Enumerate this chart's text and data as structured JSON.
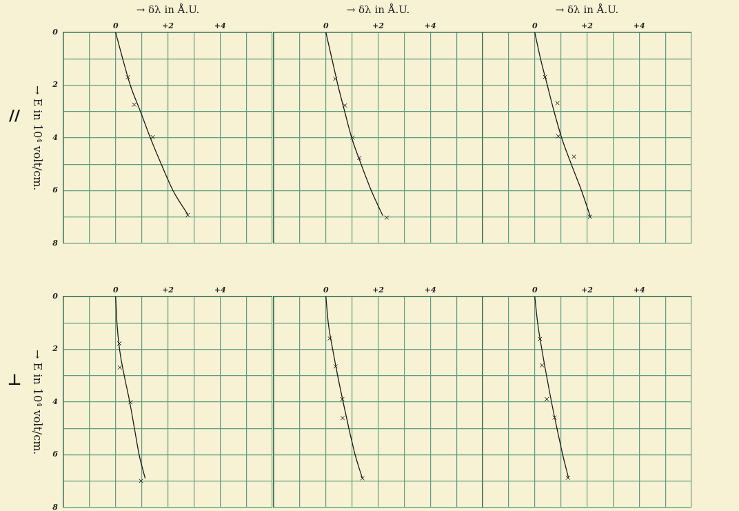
{
  "chart_data": [
    {
      "type": "scatter",
      "xlabel": "→ δλ in Å.U.",
      "ylabel": "→ E in 10⁴ volt/cm.",
      "annotations": [
        "//"
      ],
      "xlim": [
        -2,
        6
      ],
      "ylim": [
        8,
        0
      ],
      "xticks": [
        {
          "value": -2,
          "label": null
        },
        {
          "value": -1,
          "label": null
        },
        {
          "value": 0,
          "label": "0"
        },
        {
          "value": 1,
          "label": null
        },
        {
          "value": 2,
          "label": "+2"
        },
        {
          "value": 3,
          "label": null
        },
        {
          "value": 4,
          "label": "+4"
        },
        {
          "value": 5,
          "label": null
        },
        {
          "value": 6,
          "label": null
        }
      ],
      "yticks": [
        0,
        {
          "value": 1,
          "label": null
        },
        2,
        {
          "value": 3,
          "label": null
        },
        4,
        {
          "value": 5,
          "label": null
        },
        6,
        {
          "value": 7,
          "label": null
        },
        8
      ],
      "grid": true,
      "series": [
        {
          "type": "line",
          "color": "#1a1a1a",
          "marker": "none",
          "x": [
            0,
            0.27,
            0.56,
            0.95,
            1.33,
            1.75,
            2.2,
            2.76
          ],
          "values": [
            0,
            1,
            2,
            3,
            4,
            5,
            6,
            6.9
          ]
        },
        {
          "type": "scatter",
          "color": "#1a1a1a",
          "marker": "cross",
          "x": [
            0.47,
            0.71,
            1.42,
            2.76
          ],
          "values": [
            1.7,
            2.74,
            3.97,
            6.92
          ]
        }
      ]
    },
    {
      "type": "scatter",
      "xlabel": "→ δλ in Å.U.",
      "xlim": [
        -2,
        6
      ],
      "ylim": [
        8,
        0
      ],
      "xticks": [
        {
          "value": -2,
          "label": null
        },
        {
          "value": -1,
          "label": null
        },
        {
          "value": 0,
          "label": "0"
        },
        {
          "value": 1,
          "label": null
        },
        {
          "value": 2,
          "label": "+2"
        },
        {
          "value": 3,
          "label": null
        },
        {
          "value": 4,
          "label": "+4"
        },
        {
          "value": 5,
          "label": null
        },
        {
          "value": 6,
          "label": null
        }
      ],
      "yticks": [
        0,
        {
          "value": 1,
          "label": null
        },
        2,
        {
          "value": 3,
          "label": null
        },
        4,
        {
          "value": 5,
          "label": null
        },
        6,
        {
          "value": 7,
          "label": null
        },
        8
      ],
      "grid": true,
      "tick_labels": "x",
      "series": [
        {
          "type": "line",
          "color": "#1a1a1a",
          "marker": "none",
          "x": [
            0,
            0.23,
            0.46,
            0.72,
            0.99,
            1.35,
            1.74,
            2.18
          ],
          "values": [
            0,
            1,
            2,
            3,
            4,
            5,
            6,
            6.95
          ]
        },
        {
          "type": "scatter",
          "color": "#1a1a1a",
          "marker": "cross",
          "x": [
            0.36,
            0.73,
            1.02,
            1.28,
            2.33
          ],
          "values": [
            1.76,
            2.77,
            3.99,
            4.76,
            7.02
          ]
        }
      ]
    },
    {
      "type": "scatter",
      "xlabel": "→ δλ in Å.U.",
      "xlim": [
        -2,
        6
      ],
      "ylim": [
        8,
        0
      ],
      "xticks": [
        {
          "value": -2,
          "label": null
        },
        {
          "value": -1,
          "label": null
        },
        {
          "value": 0,
          "label": "0"
        },
        {
          "value": 1,
          "label": null
        },
        {
          "value": 2,
          "label": "+2"
        },
        {
          "value": 3,
          "label": null
        },
        {
          "value": 4,
          "label": "+4"
        },
        {
          "value": 5,
          "label": null
        },
        {
          "value": 6,
          "label": null
        }
      ],
      "yticks": [
        0,
        {
          "value": 1,
          "label": null
        },
        2,
        {
          "value": 3,
          "label": null
        },
        4,
        {
          "value": 5,
          "label": null
        },
        6,
        {
          "value": 7,
          "label": null
        },
        8
      ],
      "grid": true,
      "tick_labels": "x",
      "series": [
        {
          "type": "line",
          "color": "#1a1a1a",
          "marker": "none",
          "x": [
            0,
            0.22,
            0.48,
            0.74,
            1.03,
            1.4,
            1.79,
            2.13
          ],
          "values": [
            0,
            1,
            2,
            3,
            4,
            5,
            6,
            6.99
          ]
        },
        {
          "type": "scatter",
          "color": "#1a1a1a",
          "marker": "cross",
          "x": [
            0.39,
            0.87,
            0.9,
            1.5,
            2.11
          ],
          "values": [
            1.69,
            2.68,
            3.94,
            4.71,
            6.99
          ]
        }
      ]
    },
    {
      "type": "scatter",
      "ylabel": "→ E in 10⁴ volt/cm.",
      "annotations": [
        "⊥"
      ],
      "xlim": [
        -2,
        6
      ],
      "ylim": [
        8,
        0
      ],
      "xticks": [
        {
          "value": -2,
          "label": null
        },
        {
          "value": -1,
          "label": null
        },
        {
          "value": 0,
          "label": "0"
        },
        {
          "value": 1,
          "label": null
        },
        {
          "value": 2,
          "label": "+2"
        },
        {
          "value": 3,
          "label": null
        },
        {
          "value": 4,
          "label": "+4"
        },
        {
          "value": 5,
          "label": null
        },
        {
          "value": 6,
          "label": null
        }
      ],
      "yticks": [
        0,
        {
          "value": 1,
          "label": null
        },
        2,
        {
          "value": 3,
          "label": null
        },
        4,
        {
          "value": 5,
          "label": null
        },
        6,
        {
          "value": 7,
          "label": null
        },
        8
      ],
      "grid": true,
      "series": [
        {
          "type": "line",
          "color": "#1a1a1a",
          "marker": "none",
          "x": [
            0,
            0.05,
            0.15,
            0.33,
            0.54,
            0.72,
            0.9,
            1.13
          ],
          "values": [
            0,
            1,
            2,
            3,
            4,
            5,
            6,
            6.89
          ]
        },
        {
          "type": "scatter",
          "color": "#1a1a1a",
          "marker": "cross",
          "x": [
            0.14,
            0.16,
            0.57,
            0.97
          ],
          "values": [
            1.78,
            2.69,
            4.01,
            6.99
          ]
        }
      ]
    },
    {
      "type": "scatter",
      "xlim": [
        -2,
        6
      ],
      "ylim": [
        8,
        0
      ],
      "xticks": [
        {
          "value": -2,
          "label": null
        },
        {
          "value": -1,
          "label": null
        },
        {
          "value": 0,
          "label": "0"
        },
        {
          "value": 1,
          "label": null
        },
        {
          "value": 2,
          "label": "+2"
        },
        {
          "value": 3,
          "label": null
        },
        {
          "value": 4,
          "label": "+4"
        },
        {
          "value": 5,
          "label": null
        },
        {
          "value": 6,
          "label": null
        }
      ],
      "yticks": [
        0,
        {
          "value": 1,
          "label": null
        },
        2,
        {
          "value": 3,
          "label": null
        },
        4,
        {
          "value": 5,
          "label": null
        },
        6,
        {
          "value": 7,
          "label": null
        },
        8
      ],
      "grid": true,
      "tick_labels": "x",
      "series": [
        {
          "type": "line",
          "color": "#1a1a1a",
          "marker": "none",
          "x": [
            0,
            0.09,
            0.26,
            0.45,
            0.66,
            0.88,
            1.12,
            1.4
          ],
          "values": [
            0,
            1,
            2,
            3,
            4,
            5,
            6,
            6.9
          ]
        },
        {
          "type": "scatter",
          "color": "#1a1a1a",
          "marker": "cross",
          "x": [
            0.15,
            0.37,
            0.63,
            0.64,
            1.4
          ],
          "values": [
            1.59,
            2.65,
            3.89,
            4.61,
            6.89
          ]
        }
      ]
    },
    {
      "type": "scatter",
      "xlim": [
        -2,
        6
      ],
      "ylim": [
        8,
        0
      ],
      "xticks": [
        {
          "value": -2,
          "label": null
        },
        {
          "value": -1,
          "label": null
        },
        {
          "value": 0,
          "label": "0"
        },
        {
          "value": 1,
          "label": null
        },
        {
          "value": 2,
          "label": "+2"
        },
        {
          "value": 3,
          "label": null
        },
        {
          "value": 4,
          "label": "+4"
        },
        {
          "value": 5,
          "label": null
        },
        {
          "value": 6,
          "label": null
        }
      ],
      "yticks": [
        0,
        {
          "value": 1,
          "label": null
        },
        2,
        {
          "value": 3,
          "label": null
        },
        4,
        {
          "value": 5,
          "label": null
        },
        6,
        {
          "value": 7,
          "label": null
        },
        8
      ],
      "grid": true,
      "tick_labels": "x",
      "series": [
        {
          "type": "line",
          "color": "#1a1a1a",
          "marker": "none",
          "x": [
            0,
            0.11,
            0.27,
            0.45,
            0.64,
            0.85,
            1.07,
            1.29
          ],
          "values": [
            0,
            1,
            2,
            3,
            4,
            5,
            6,
            6.87
          ]
        },
        {
          "type": "scatter",
          "color": "#1a1a1a",
          "marker": "cross",
          "x": [
            0.2,
            0.28,
            0.46,
            0.76,
            1.27
          ],
          "values": [
            1.61,
            2.61,
            3.89,
            4.59,
            6.87
          ]
        }
      ]
    }
  ]
}
